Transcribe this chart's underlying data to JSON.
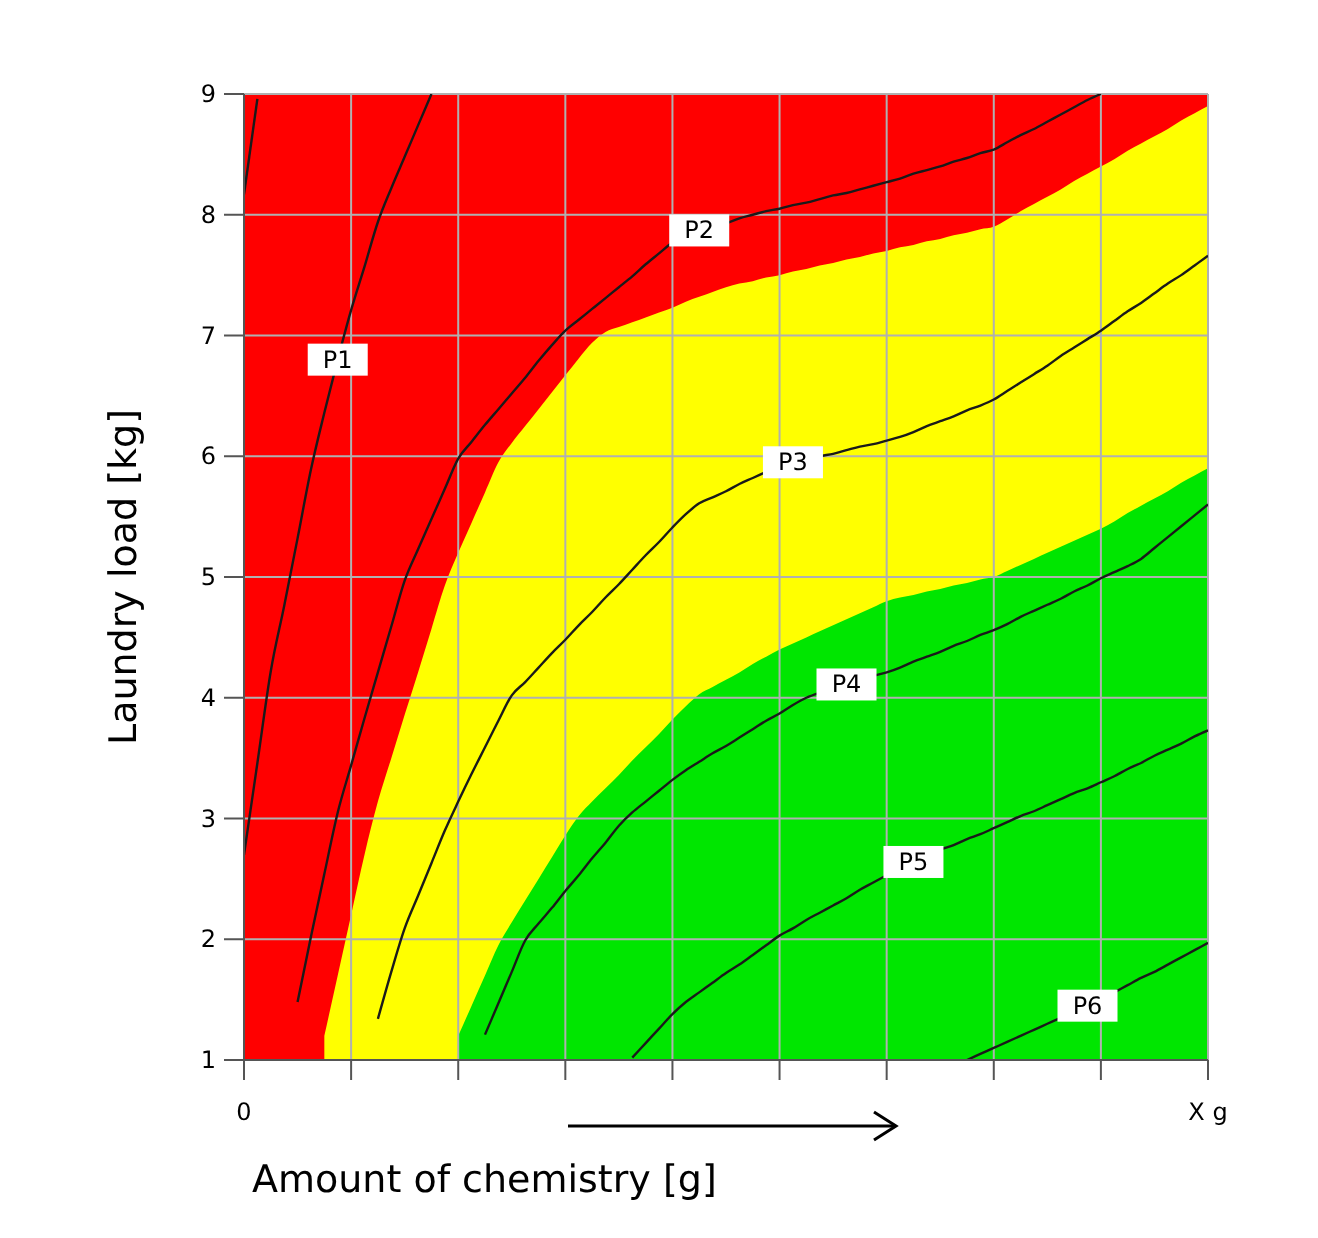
{
  "chart_data": {
    "type": "line",
    "xlabel": "Amount of chemistry [g]",
    "ylabel": "Laundry load [kg]",
    "categories": [
      "0",
      null,
      null,
      null,
      null,
      null,
      null,
      null,
      null,
      null,
      null,
      null,
      null,
      null,
      null,
      null,
      null,
      null,
      null,
      null,
      null,
      null,
      null,
      null,
      null,
      null,
      null,
      null,
      null,
      null,
      null,
      null,
      null,
      null,
      null,
      null,
      null,
      null,
      null,
      null,
      null,
      null,
      null,
      null,
      null,
      null,
      null,
      null,
      null,
      null,
      null,
      null,
      null,
      null,
      null,
      null,
      null,
      null,
      null,
      null,
      null,
      null,
      null,
      null,
      null,
      null,
      null,
      null,
      null,
      null,
      null,
      null,
      "X g"
    ],
    "ylim": [
      1,
      9
    ],
    "yticks": [
      1,
      2,
      3,
      4,
      5,
      6,
      7,
      8,
      9
    ],
    "grid": true,
    "marker": "none",
    "line_style": "solid",
    "bands": [
      {
        "axis": "y",
        "from": 1,
        "to": 9,
        "color": "#ff0000"
      }
    ],
    "series": [
      {
        "type": "area",
        "color": "#ffff00",
        "values": [
          null,
          null,
          null,
          null,
          null,
          null,
          1.2,
          1.7,
          2.2,
          2.7,
          3.14,
          3.5,
          3.86,
          4.21,
          4.57,
          4.93,
          5.2,
          5.45,
          5.7,
          5.95,
          6.11,
          6.25,
          6.39,
          6.53,
          6.67,
          6.81,
          6.94,
          7.03,
          7.07,
          7.11,
          7.15,
          7.19,
          7.23,
          7.28,
          7.32,
          7.36,
          7.4,
          7.43,
          7.45,
          7.48,
          7.5,
          7.53,
          7.55,
          7.58,
          7.6,
          7.63,
          7.65,
          7.68,
          7.7,
          7.73,
          7.75,
          7.78,
          7.8,
          7.83,
          7.85,
          7.88,
          7.9,
          7.96,
          8.03,
          8.09,
          8.15,
          8.21,
          8.28,
          8.34,
          8.4,
          8.46,
          8.53,
          8.59,
          8.65,
          8.71,
          8.78,
          8.84,
          8.9
        ]
      },
      {
        "type": "area",
        "color": "#00e600",
        "values": [
          null,
          null,
          null,
          null,
          null,
          null,
          null,
          null,
          null,
          null,
          null,
          null,
          null,
          null,
          null,
          null,
          1.2,
          1.45,
          1.7,
          1.95,
          2.14,
          2.32,
          2.5,
          2.68,
          2.86,
          3.02,
          3.14,
          3.25,
          3.36,
          3.48,
          3.59,
          3.7,
          3.82,
          3.93,
          4.03,
          4.09,
          4.15,
          4.21,
          4.28,
          4.34,
          4.4,
          4.45,
          4.5,
          4.55,
          4.6,
          4.65,
          4.7,
          4.75,
          4.8,
          4.83,
          4.85,
          4.88,
          4.9,
          4.93,
          4.95,
          4.98,
          5.0,
          5.05,
          5.1,
          5.15,
          5.2,
          5.25,
          5.3,
          5.35,
          5.4,
          5.46,
          5.53,
          5.59,
          5.65,
          5.71,
          5.78,
          5.84,
          5.9
        ]
      },
      {
        "color": "#1a1a1a",
        "values": [
          8.17,
          8.96,
          null,
          null,
          null,
          null,
          null,
          null,
          null,
          null,
          null,
          null,
          null,
          null,
          null,
          null,
          null,
          null,
          null,
          null,
          null,
          null,
          null,
          null,
          null,
          null,
          null,
          null,
          null,
          null,
          null,
          null,
          null,
          null,
          null,
          null,
          null,
          null,
          null,
          null,
          null,
          null,
          null,
          null,
          null,
          null,
          null,
          null,
          null,
          null,
          null,
          null,
          null,
          null,
          null,
          null,
          null,
          null,
          null,
          null,
          null,
          null,
          null,
          null,
          null,
          null,
          null,
          null,
          null,
          null,
          null,
          null,
          null
        ]
      },
      {
        "name": "P1",
        "color": "#1a1a1a",
        "values": [
          2.7,
          3.46,
          4.22,
          4.76,
          5.32,
          5.89,
          6.36,
          6.8,
          7.21,
          7.57,
          7.94,
          8.22,
          8.48,
          8.74,
          9,
          null,
          null,
          null,
          null,
          null,
          null,
          null,
          null,
          null,
          null,
          null,
          null,
          null,
          null,
          null,
          null,
          null,
          null,
          null,
          null,
          null,
          null,
          null,
          null,
          null,
          null,
          null,
          null,
          null,
          null,
          null,
          null,
          null,
          null,
          null,
          null,
          null,
          null,
          null,
          null,
          null,
          null,
          null,
          null,
          null,
          null,
          null,
          null,
          null,
          null,
          null,
          null,
          null,
          null,
          null,
          null,
          null,
          null
        ]
      },
      {
        "name": "P2",
        "color": "#1a1a1a",
        "values": [
          null,
          null,
          null,
          null,
          1.48,
          2.02,
          2.54,
          3.05,
          3.44,
          3.83,
          4.21,
          4.59,
          4.97,
          5.23,
          5.48,
          5.73,
          5.98,
          6.12,
          6.26,
          6.39,
          6.52,
          6.65,
          6.79,
          6.92,
          7.04,
          7.13,
          7.22,
          7.31,
          7.4,
          7.49,
          7.59,
          7.68,
          7.77,
          7.83,
          7.87,
          7.9,
          7.93,
          7.97,
          8.0,
          8.03,
          8.05,
          8.08,
          8.1,
          8.13,
          8.16,
          8.18,
          8.21,
          8.24,
          8.27,
          8.3,
          8.34,
          8.37,
          8.4,
          8.44,
          8.47,
          8.51,
          8.54,
          8.6,
          8.66,
          8.71,
          8.77,
          8.83,
          8.89,
          8.95,
          9.0,
          null,
          null,
          null,
          null,
          null,
          null,
          null,
          null
        ]
      },
      {
        "name": "P3",
        "color": "#1a1a1a",
        "values": [
          null,
          null,
          null,
          null,
          null,
          null,
          null,
          null,
          null,
          null,
          1.34,
          1.73,
          2.09,
          2.36,
          2.63,
          2.9,
          3.14,
          3.37,
          3.59,
          3.81,
          4.02,
          4.13,
          4.25,
          4.37,
          4.48,
          4.6,
          4.71,
          4.83,
          4.94,
          5.06,
          5.18,
          5.29,
          5.41,
          5.52,
          5.61,
          5.66,
          5.71,
          5.77,
          5.82,
          5.87,
          5.92,
          5.95,
          5.97,
          6.0,
          6.02,
          6.05,
          6.08,
          6.1,
          6.13,
          6.16,
          6.2,
          6.25,
          6.29,
          6.33,
          6.38,
          6.42,
          6.47,
          6.54,
          6.61,
          6.68,
          6.75,
          6.83,
          6.9,
          6.97,
          7.04,
          7.12,
          7.2,
          7.27,
          7.35,
          7.43,
          7.5,
          7.58,
          7.66
        ]
      },
      {
        "name": "P4",
        "color": "#1a1a1a",
        "values": [
          null,
          null,
          null,
          null,
          null,
          null,
          null,
          null,
          null,
          null,
          null,
          null,
          null,
          null,
          null,
          null,
          null,
          null,
          1.21,
          1.47,
          1.73,
          1.99,
          2.13,
          2.26,
          2.4,
          2.53,
          2.67,
          2.8,
          2.94,
          3.05,
          3.14,
          3.23,
          3.32,
          3.4,
          3.47,
          3.54,
          3.6,
          3.67,
          3.74,
          3.81,
          3.87,
          3.94,
          4.0,
          4.04,
          4.07,
          4.11,
          4.14,
          4.18,
          4.21,
          4.25,
          4.3,
          4.34,
          4.38,
          4.43,
          4.47,
          4.52,
          4.56,
          4.61,
          4.67,
          4.72,
          4.77,
          4.82,
          4.88,
          4.93,
          4.99,
          5.04,
          5.09,
          5.15,
          5.24,
          5.33,
          5.42,
          5.51,
          5.6
        ]
      },
      {
        "name": "P5",
        "color": "#1a1a1a",
        "values": [
          null,
          null,
          null,
          null,
          null,
          null,
          null,
          null,
          null,
          null,
          null,
          null,
          null,
          null,
          null,
          null,
          null,
          null,
          null,
          null,
          null,
          null,
          null,
          null,
          null,
          null,
          null,
          null,
          null,
          1.02,
          1.14,
          1.26,
          1.38,
          1.48,
          1.56,
          1.64,
          1.72,
          1.79,
          1.87,
          1.95,
          2.03,
          2.09,
          2.16,
          2.22,
          2.28,
          2.34,
          2.41,
          2.47,
          2.53,
          2.59,
          2.64,
          2.69,
          2.74,
          2.78,
          2.83,
          2.87,
          2.92,
          2.97,
          3.02,
          3.06,
          3.11,
          3.16,
          3.21,
          3.25,
          3.3,
          3.35,
          3.41,
          3.46,
          3.52,
          3.57,
          3.62,
          3.68,
          3.73
        ]
      },
      {
        "name": "P6",
        "color": "#1a1a1a",
        "values": [
          null,
          null,
          null,
          null,
          null,
          null,
          null,
          null,
          null,
          null,
          null,
          null,
          null,
          null,
          null,
          null,
          null,
          null,
          null,
          null,
          null,
          null,
          null,
          null,
          null,
          null,
          null,
          null,
          null,
          null,
          null,
          null,
          null,
          null,
          null,
          null,
          null,
          null,
          null,
          null,
          null,
          null,
          null,
          null,
          null,
          null,
          null,
          null,
          null,
          null,
          null,
          null,
          null,
          null,
          1.0,
          1.05,
          1.1,
          1.15,
          1.2,
          1.25,
          1.3,
          1.35,
          1.4,
          1.45,
          1.5,
          1.56,
          1.62,
          1.68,
          1.73,
          1.79,
          1.85,
          1.91,
          1.97
        ]
      }
    ]
  }
}
